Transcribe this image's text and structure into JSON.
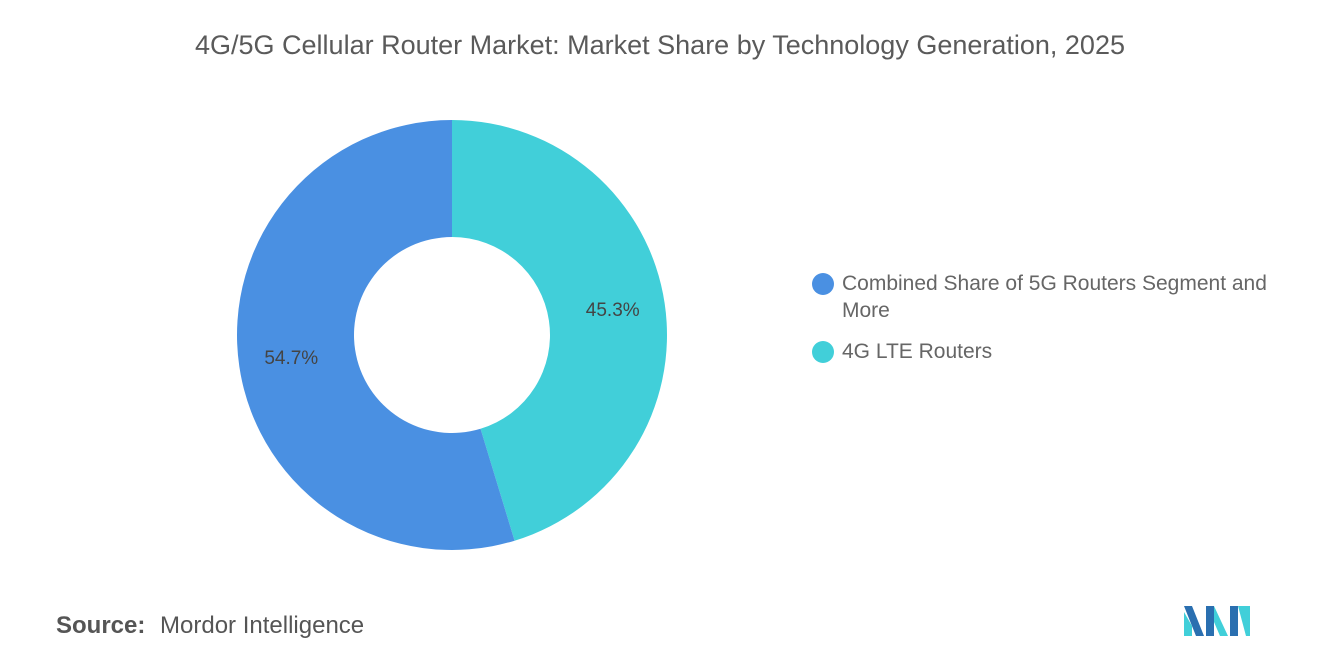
{
  "chart_data": {
    "type": "pie",
    "variant": "donut",
    "title": "4G/5G Cellular Router Market: Market Share by Technology Generation, 2025",
    "slices": [
      {
        "label": "4G LTE Routers",
        "value": 45.3,
        "display": "45.3%",
        "color": "#41CFD9"
      },
      {
        "label": "Combined Share of 5G Routers Segment and More",
        "value": 54.7,
        "display": "54.7%",
        "color": "#4A90E2"
      }
    ],
    "legend": {
      "placement": "right",
      "items": [
        {
          "label": "Combined Share of 5G Routers Segment and More",
          "color": "#4A90E2"
        },
        {
          "label": "4G LTE Routers",
          "color": "#41CFD9"
        }
      ]
    }
  },
  "footer": {
    "source_label": "Source:",
    "source_value": "Mordor Intelligence"
  },
  "logo": {
    "icon": "mordor-intelligence-logo-icon",
    "colors": [
      "#2A6FB0",
      "#41CFD9"
    ]
  }
}
